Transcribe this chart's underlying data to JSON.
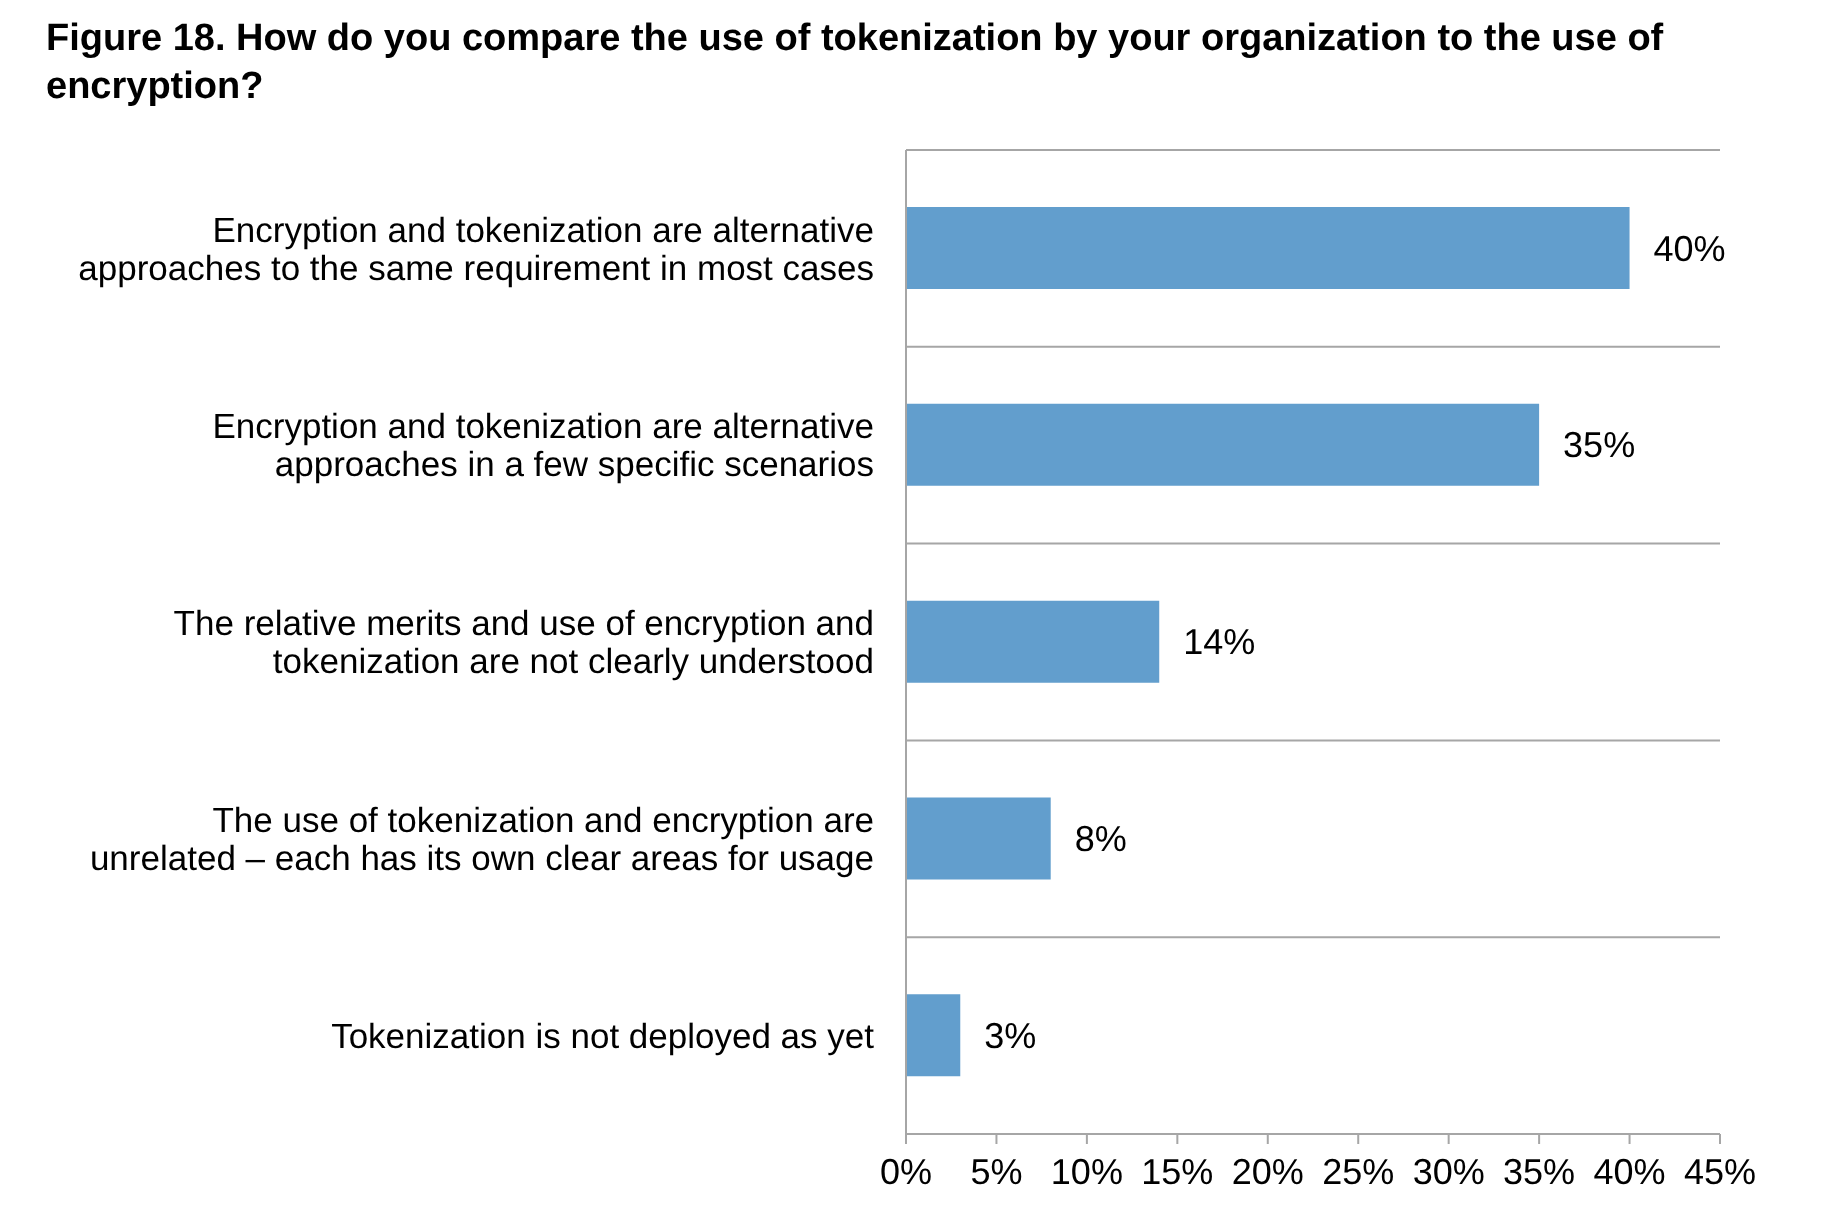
{
  "chart_data": {
    "type": "bar",
    "title": "Figure 18. How do you compare the use of tokenization by your organization to the use of encryption?",
    "orientation": "horizontal",
    "categories": [
      "Encryption and tokenization are alternative approaches to the same requirement in most cases",
      "Encryption and tokenization are alternative approaches in a few specific scenarios",
      "The relative merits and use of encryption and tokenization are not clearly understood",
      "The use of tokenization and encryption are unrelated – each has its own clear areas for usage",
      "Tokenization is not deployed as yet"
    ],
    "values": [
      40,
      35,
      14,
      8,
      3
    ],
    "value_labels": [
      "40%",
      "35%",
      "14%",
      "8%",
      "3%"
    ],
    "color": "#629ecd",
    "xlim": [
      0,
      45
    ],
    "xticks": [
      {
        "value": 0,
        "label": "0%"
      },
      {
        "value": 5,
        "label": "5%"
      },
      {
        "value": 10,
        "label": "10%"
      },
      {
        "value": 15,
        "label": "15%"
      },
      {
        "value": 20,
        "label": "20%"
      },
      {
        "value": 25,
        "label": "25%"
      },
      {
        "value": 30,
        "label": "30%"
      },
      {
        "value": 35,
        "label": "35%"
      },
      {
        "value": 40,
        "label": "40%"
      },
      {
        "value": 45,
        "label": "45%"
      }
    ],
    "grid": "y"
  }
}
